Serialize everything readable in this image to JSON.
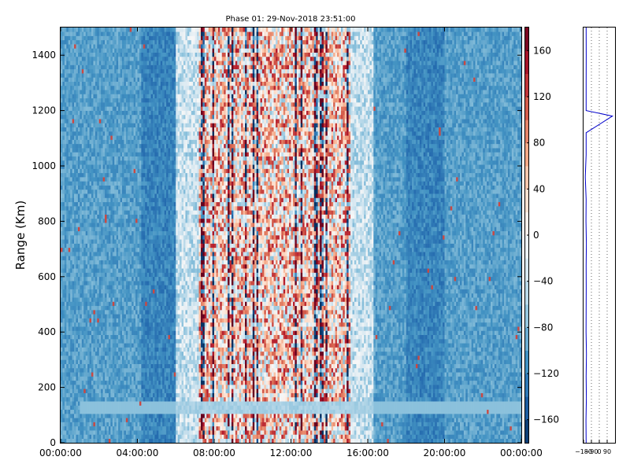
{
  "chart_data": [
    {
      "type": "heatmap",
      "title": "Phase 01: 29-Nov-2018 23:51:00",
      "xlabel": "",
      "ylabel": "Range (Km)",
      "x_tick_labels": [
        "00:00:00",
        "04:00:00",
        "08:00:00",
        "12:00:00",
        "16:00:00",
        "20:00:00",
        "00:00:00"
      ],
      "x_range_hours": [
        0,
        24
      ],
      "y_ticks": [
        0,
        200,
        400,
        600,
        800,
        1000,
        1200,
        1400
      ],
      "ylim": [
        0,
        1500
      ],
      "colormap": "RdBu_r",
      "colorbar": {
        "vmin": -180,
        "vmax": 180,
        "ticks": [
          -160,
          -120,
          -80,
          -40,
          0,
          40,
          80,
          120,
          160
        ],
        "tick_labels": [
          "−160",
          "−120",
          "−80",
          "−40",
          "0",
          "40",
          "80",
          "120",
          "160"
        ]
      },
      "regions": [
        {
          "description": "night phase, mostly blue",
          "hours": [
            0,
            6.0
          ],
          "phase_approx": -100
        },
        {
          "description": "daytime noisy phase",
          "hours": [
            6.0,
            16.3
          ],
          "phase_approx": "random -180..180"
        },
        {
          "description": "night phase, mostly blue",
          "hours": [
            16.3,
            24
          ],
          "phase_approx": -100
        },
        {
          "description": "lighter blue horizontal band",
          "range_km": [
            110,
            150
          ],
          "phase_approx": -70
        }
      ],
      "colors": {
        "blue": "#4a90c4",
        "white": "#f7f7f7",
        "red": "#b2182b"
      }
    },
    {
      "type": "line",
      "title": "",
      "xlabel": "",
      "ylabel": "",
      "x_tick_labels": [
        "−180",
        "−90",
        "0",
        "90"
      ],
      "xlim": [
        -180,
        180
      ],
      "ylim": [
        0,
        1500
      ],
      "grid": true,
      "series": [
        {
          "color": "#0000cc",
          "description": "phase profile vs range, roughly constant near -150 with spike at ~1180 km",
          "x": [
            -150,
            -152,
            -148,
            -150,
            -147,
            -151,
            -150,
            -149,
            -150,
            -148,
            -152,
            -150,
            -160,
            -150,
            -150,
            150,
            -150,
            -150,
            -149,
            -150
          ],
          "y": [
            0,
            80,
            160,
            240,
            320,
            400,
            480,
            560,
            640,
            720,
            800,
            880,
            960,
            1040,
            1120,
            1180,
            1200,
            1300,
            1400,
            1500
          ]
        }
      ]
    }
  ]
}
